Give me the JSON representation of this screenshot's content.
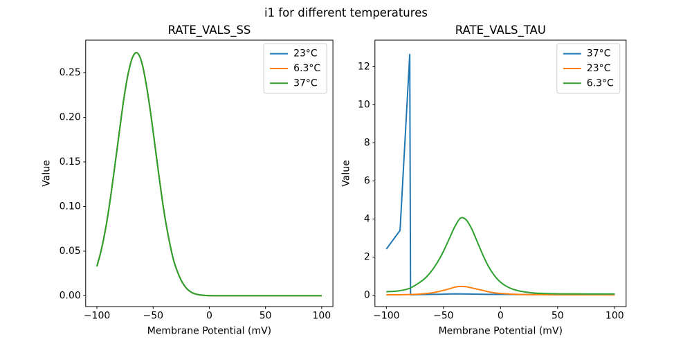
{
  "figure": {
    "title": "i1 for different temperatures"
  },
  "colors": {
    "blue": "#1f77b4",
    "orange": "#ff7f0e",
    "green": "#2ca02c",
    "spine": "#000000",
    "legend_edge": "#cccccc"
  },
  "chart_data": [
    {
      "type": "line",
      "title": "RATE_VALS_SS",
      "xlabel": "Membrane Potential (mV)",
      "ylabel": "Value",
      "xlim": [
        -110,
        110
      ],
      "ylim": [
        -0.012,
        0.2864
      ],
      "xticks": [
        -100,
        -50,
        0,
        50,
        100
      ],
      "xtick_labels": [
        "−100",
        "−50",
        "0",
        "50",
        "100"
      ],
      "yticks": [
        0.0,
        0.05,
        0.1,
        0.15,
        0.2,
        0.25
      ],
      "ytick_labels": [
        "0.00",
        "0.05",
        "0.10",
        "0.15",
        "0.20",
        "0.25"
      ],
      "grid": false,
      "legend_position": "upper right",
      "note": "all three temperature curves overlap exactly; green (37°C, drawn last) is visible",
      "series": [
        {
          "name": "23°C",
          "color": "#1f77b4",
          "smooth": true,
          "x": [
            -100,
            -96,
            -92,
            -88,
            -84,
            -80,
            -76,
            -72,
            -68,
            -64,
            -60,
            -56,
            -52,
            -48,
            -44,
            -40,
            -36,
            -32,
            -28,
            -24,
            -20,
            -16,
            -12,
            -8,
            -4,
            0,
            10,
            20,
            30,
            40,
            50,
            60,
            70,
            80,
            90,
            100
          ],
          "y": [
            0.033,
            0.052,
            0.077,
            0.109,
            0.146,
            0.184,
            0.221,
            0.25,
            0.268,
            0.272,
            0.261,
            0.236,
            0.203,
            0.165,
            0.127,
            0.092,
            0.064,
            0.041,
            0.026,
            0.015,
            0.008,
            0.004,
            0.002,
            0.001,
            0.0005,
            0.0002,
            0.0001,
            0.0001,
            0.0001,
            0.0001,
            0.0001,
            0.0001,
            0.0001,
            0.0001,
            0.0001,
            0.0001
          ]
        },
        {
          "name": "6.3°C",
          "color": "#ff7f0e",
          "smooth": true,
          "x": [
            -100,
            -96,
            -92,
            -88,
            -84,
            -80,
            -76,
            -72,
            -68,
            -64,
            -60,
            -56,
            -52,
            -48,
            -44,
            -40,
            -36,
            -32,
            -28,
            -24,
            -20,
            -16,
            -12,
            -8,
            -4,
            0,
            10,
            20,
            30,
            40,
            50,
            60,
            70,
            80,
            90,
            100
          ],
          "y": [
            0.033,
            0.052,
            0.077,
            0.109,
            0.146,
            0.184,
            0.221,
            0.25,
            0.268,
            0.272,
            0.261,
            0.236,
            0.203,
            0.165,
            0.127,
            0.092,
            0.064,
            0.041,
            0.026,
            0.015,
            0.008,
            0.004,
            0.002,
            0.001,
            0.0005,
            0.0002,
            0.0001,
            0.0001,
            0.0001,
            0.0001,
            0.0001,
            0.0001,
            0.0001,
            0.0001,
            0.0001,
            0.0001
          ]
        },
        {
          "name": "37°C",
          "color": "#2ca02c",
          "smooth": true,
          "x": [
            -100,
            -96,
            -92,
            -88,
            -84,
            -80,
            -76,
            -72,
            -68,
            -64,
            -60,
            -56,
            -52,
            -48,
            -44,
            -40,
            -36,
            -32,
            -28,
            -24,
            -20,
            -16,
            -12,
            -8,
            -4,
            0,
            10,
            20,
            30,
            40,
            50,
            60,
            70,
            80,
            90,
            100
          ],
          "y": [
            0.033,
            0.052,
            0.077,
            0.109,
            0.146,
            0.184,
            0.221,
            0.25,
            0.268,
            0.272,
            0.261,
            0.236,
            0.203,
            0.165,
            0.127,
            0.092,
            0.064,
            0.041,
            0.026,
            0.015,
            0.008,
            0.004,
            0.002,
            0.001,
            0.0005,
            0.0002,
            0.0001,
            0.0001,
            0.0001,
            0.0001,
            0.0001,
            0.0001,
            0.0001,
            0.0001,
            0.0001,
            0.0001
          ]
        }
      ]
    },
    {
      "type": "line",
      "title": "RATE_VALS_TAU",
      "xlabel": "Membrane Potential (mV)",
      "ylabel": "Value",
      "xlim": [
        -110,
        110
      ],
      "ylim": [
        -0.6,
        13.4
      ],
      "xticks": [
        -100,
        -50,
        0,
        50,
        100
      ],
      "xtick_labels": [
        "−100",
        "−50",
        "0",
        "50",
        "100"
      ],
      "yticks": [
        0,
        2,
        4,
        6,
        8,
        10,
        12
      ],
      "ytick_labels": [
        "0",
        "2",
        "4",
        "6",
        "8",
        "10",
        "12"
      ],
      "grid": false,
      "legend_position": "upper right",
      "note": "blue 37°C spikes to ~12.65 near -80 mV then collapses to ~0; green 6.3°C bell peaks ~4.05 near -35 mV; orange 23°C small bump peaks ~0.46 near -35 mV",
      "series": [
        {
          "name": "37°C",
          "color": "#1f77b4",
          "smooth": false,
          "x": [
            -100,
            -88,
            -79.5,
            -78.8,
            -70,
            -60,
            -50,
            -40,
            -30,
            -20,
            -10,
            0,
            20,
            40,
            60,
            80,
            100
          ],
          "y": [
            2.42,
            3.4,
            12.65,
            0.02,
            0.03,
            0.04,
            0.05,
            0.07,
            0.06,
            0.05,
            0.04,
            0.04,
            0.03,
            0.03,
            0.03,
            0.03,
            0.03
          ]
        },
        {
          "name": "23°C",
          "color": "#ff7f0e",
          "smooth": true,
          "x": [
            -100,
            -90,
            -80,
            -70,
            -60,
            -50,
            -45,
            -40,
            -35,
            -30,
            -25,
            -20,
            -15,
            -10,
            -5,
            0,
            10,
            20,
            30,
            50,
            75,
            100
          ],
          "y": [
            0.02,
            0.02,
            0.03,
            0.06,
            0.12,
            0.25,
            0.33,
            0.42,
            0.46,
            0.44,
            0.38,
            0.31,
            0.24,
            0.17,
            0.12,
            0.09,
            0.05,
            0.03,
            0.025,
            0.02,
            0.02,
            0.015
          ]
        },
        {
          "name": "6.3°C",
          "color": "#2ca02c",
          "smooth": true,
          "x": [
            -100,
            -90,
            -80,
            -70,
            -65,
            -60,
            -55,
            -50,
            -45,
            -40,
            -35,
            -30,
            -25,
            -20,
            -15,
            -10,
            -5,
            0,
            5,
            10,
            15,
            20,
            30,
            40,
            50,
            75,
            100
          ],
          "y": [
            0.18,
            0.22,
            0.35,
            0.7,
            0.95,
            1.3,
            1.75,
            2.3,
            2.95,
            3.6,
            4.05,
            3.95,
            3.45,
            2.75,
            2.05,
            1.45,
            1.0,
            0.68,
            0.47,
            0.33,
            0.24,
            0.18,
            0.11,
            0.08,
            0.07,
            0.06,
            0.06
          ]
        }
      ]
    }
  ]
}
